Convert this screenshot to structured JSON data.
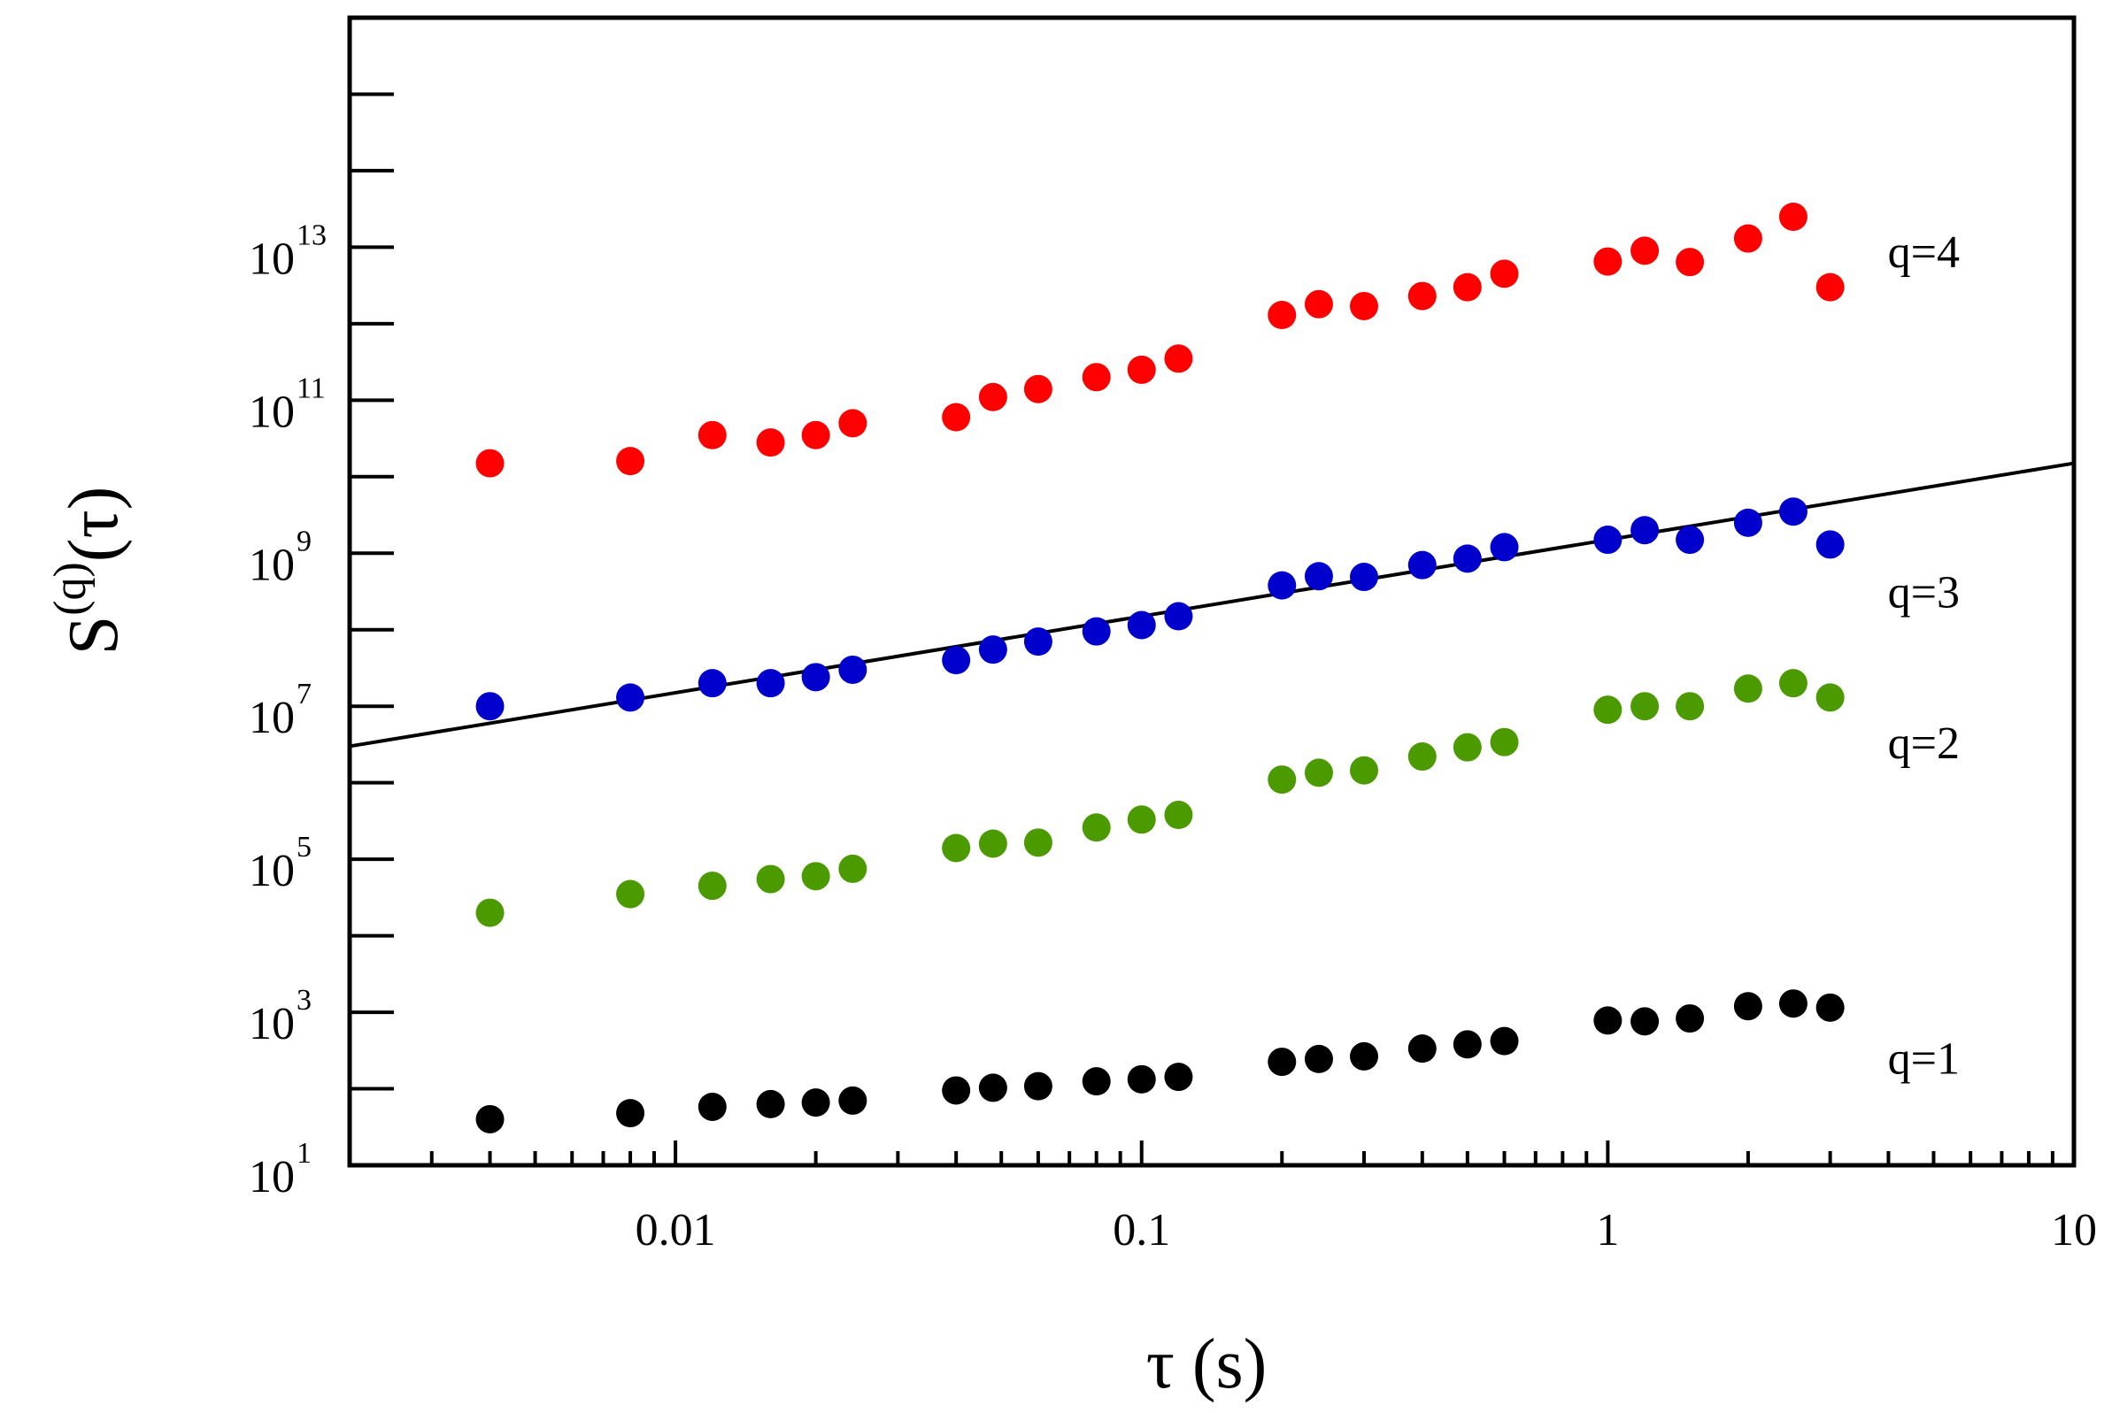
{
  "chart_data": {
    "type": "scatter",
    "title": "",
    "xlabel": {
      "symbol": "τ",
      "unit": " (s)"
    },
    "ylabel": {
      "base": "S",
      "superscript": "(q)",
      "argument": "(τ)"
    },
    "xscale": "log",
    "yscale": "log",
    "xlim": [
      0.002,
      10
    ],
    "ylim": [
      10,
      10000000000000000
    ],
    "x_tick_labels": [
      {
        "value": 0.01,
        "label": "0.01"
      },
      {
        "value": 0.1,
        "label": "0.1"
      },
      {
        "value": 1,
        "label": "1"
      },
      {
        "value": 10,
        "label": "10"
      }
    ],
    "y_tick_labels": [
      {
        "value": 10,
        "base": "10",
        "exp": "1"
      },
      {
        "value": 1000,
        "base": "10",
        "exp": "3"
      },
      {
        "value": 100000,
        "base": "10",
        "exp": "5"
      },
      {
        "value": 10000000,
        "base": "10",
        "exp": "7"
      },
      {
        "value": 1000000000,
        "base": "10",
        "exp": "9"
      },
      {
        "value": 100000000000,
        "base": "10",
        "exp": "11"
      },
      {
        "value": 10000000000000,
        "base": "10",
        "exp": "13"
      }
    ],
    "x": [
      0.004,
      0.008,
      0.012,
      0.016,
      0.02,
      0.024,
      0.04,
      0.048,
      0.06,
      0.08,
      0.1,
      0.12,
      0.2,
      0.24,
      0.3,
      0.4,
      0.5,
      0.6,
      1.0,
      1.2,
      1.5,
      2.0,
      2.5,
      3.0
    ],
    "series": [
      {
        "name": "q=1",
        "label": "q=1",
        "color": "#000000",
        "values": [
          40,
          48,
          58,
          63,
          66,
          70,
          95,
          103,
          108,
          125,
          133,
          143,
          225,
          245,
          265,
          335,
          380,
          420,
          780,
          760,
          830,
          1200,
          1300,
          1150
        ]
      },
      {
        "name": "q=2",
        "label": "q=2",
        "color": "#4a9a00",
        "values": [
          20000,
          35000,
          45000,
          55000,
          60000,
          75000,
          140000,
          160000,
          165000,
          260000,
          330000,
          380000,
          1100000,
          1350000,
          1450000,
          2200000,
          2900000,
          3400000,
          9000000,
          10000000,
          10000000,
          17000000,
          20000000,
          13000000
        ]
      },
      {
        "name": "q=3",
        "label": "q=3",
        "color": "#0000cc",
        "values": [
          10000000,
          13000000,
          20000000,
          20000000,
          24000000,
          30000000,
          40000000,
          55000000,
          70000000,
          95000000,
          115000000,
          150000000,
          380000000,
          500000000,
          490000000,
          700000000,
          850000000,
          1200000000,
          1500000000,
          2000000000,
          1500000000,
          2500000000,
          3500000000,
          1300000000
        ]
      },
      {
        "name": "q=4",
        "label": "q=4",
        "color": "#ff0000",
        "values": [
          15000000000,
          16000000000,
          35000000000,
          28000000000,
          35000000000,
          50000000000,
          60000000000,
          110000000000,
          140000000000,
          200000000000,
          250000000000,
          350000000000,
          1300000000000,
          1800000000000,
          1700000000000,
          2300000000000,
          3000000000000,
          4500000000000,
          6500000000000,
          9000000000000,
          6400000000000,
          13000000000000,
          25000000000000,
          3000000000000
        ]
      }
    ],
    "fit_line": {
      "series": "q=3",
      "x": [
        0.002,
        10
      ],
      "y": [
        3000000,
        15000000000
      ]
    }
  }
}
